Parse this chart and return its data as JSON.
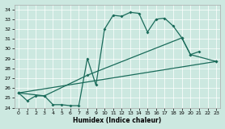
{
  "xlabel": "Humidex (Indice chaleur)",
  "xlim": [
    -0.5,
    23.5
  ],
  "ylim": [
    24,
    34.5
  ],
  "yticks": [
    24,
    25,
    26,
    27,
    28,
    29,
    30,
    31,
    32,
    33,
    34
  ],
  "xticks": [
    0,
    1,
    2,
    3,
    4,
    5,
    6,
    7,
    8,
    9,
    10,
    11,
    12,
    13,
    14,
    15,
    16,
    17,
    18,
    19,
    20,
    21,
    22,
    23
  ],
  "bg_color": "#cce8e0",
  "line_color": "#1a6b5a",
  "line1_x": [
    0,
    1,
    2,
    3,
    4,
    5,
    6,
    7,
    8,
    9,
    10,
    11,
    12,
    13,
    14,
    15,
    16,
    17,
    18,
    19,
    20,
    21
  ],
  "line1_y": [
    25.5,
    24.7,
    25.2,
    25.2,
    24.3,
    24.3,
    24.2,
    24.2,
    29.0,
    26.3,
    32.0,
    33.4,
    33.3,
    33.7,
    33.6,
    31.7,
    33.0,
    33.1,
    32.3,
    31.1,
    29.4,
    29.7
  ],
  "line2_x": [
    0,
    3,
    8,
    19,
    20,
    23
  ],
  "line2_y": [
    25.5,
    25.2,
    27.3,
    31.1,
    29.4,
    28.7
  ],
  "line3_x": [
    0,
    23
  ],
  "line3_y": [
    25.5,
    28.7
  ]
}
